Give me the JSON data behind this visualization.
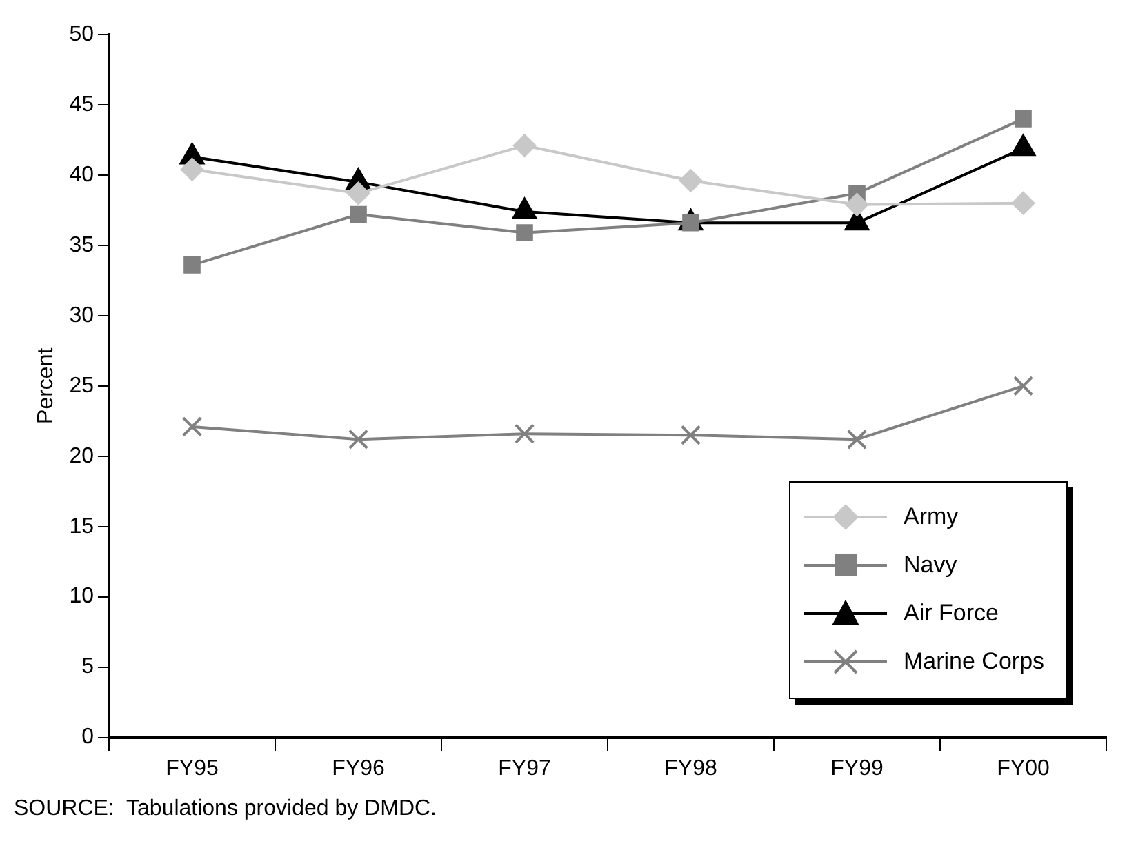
{
  "chart_data": {
    "type": "line",
    "ylabel": "Percent",
    "categories": [
      "FY95",
      "FY96",
      "FY97",
      "FY98",
      "FY99",
      "FY00"
    ],
    "ylim": [
      0,
      50
    ],
    "yticks": [
      0,
      5,
      10,
      15,
      20,
      25,
      30,
      35,
      40,
      45,
      50
    ],
    "grid": false,
    "legend": "bottom right",
    "line_style": "solid",
    "series": [
      {
        "name": "Army",
        "color": "#c8c8c8",
        "marker": "diamond",
        "values": [
          40.4,
          38.7,
          42.1,
          39.6,
          37.9,
          38.0
        ]
      },
      {
        "name": "Navy",
        "color": "#808080",
        "marker": "square",
        "values": [
          33.6,
          37.2,
          35.9,
          36.6,
          38.7,
          44.0
        ]
      },
      {
        "name": "Air Force",
        "color": "#000000",
        "marker": "triangle",
        "values": [
          41.3,
          39.5,
          37.4,
          36.6,
          36.6,
          41.9
        ]
      },
      {
        "name": "Marine Corps",
        "color": "#808080",
        "marker": "cross",
        "values": [
          22.1,
          21.2,
          21.6,
          21.5,
          21.2,
          25.0
        ]
      }
    ],
    "annotations": [
      "SOURCE:  Tabulations provided by DMDC."
    ]
  }
}
